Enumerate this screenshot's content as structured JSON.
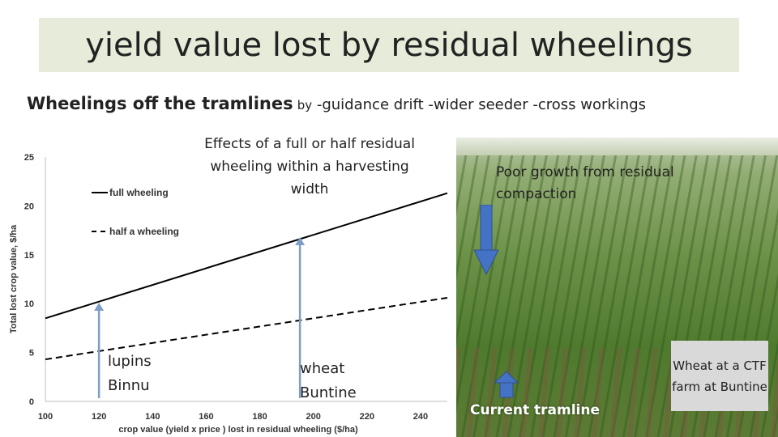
{
  "title": "yield value lost by residual wheelings",
  "subtitle": {
    "bold": "Wheelings off the tramlines",
    "by": "by",
    "rest": " -guidance drift  -wider seeder  -cross workings"
  },
  "chart_data": {
    "type": "line",
    "xlabel": "crop value (yield x price ) lost in residual wheeling ($/ha)",
    "ylabel": "Total lost crop value, $/ha",
    "xlim": [
      100,
      250
    ],
    "ylim": [
      0,
      25
    ],
    "x_ticks": [
      100,
      120,
      140,
      160,
      180,
      200,
      220,
      240
    ],
    "y_ticks": [
      0,
      5,
      10,
      15,
      20,
      25
    ],
    "series": [
      {
        "name": "full wheeling",
        "style": "solid",
        "x": [
          100,
          250
        ],
        "y": [
          8.5,
          21.3
        ]
      },
      {
        "name": "half a wheeling",
        "style": "dashed",
        "x": [
          100,
          250
        ],
        "y": [
          4.3,
          10.6
        ]
      }
    ],
    "legend": {
      "full": "full wheeling",
      "half": "half a wheeling",
      "placement": "top-left"
    },
    "annotations": [
      {
        "x": 120,
        "y_top": 10.1,
        "label_line1": "lupins",
        "label_line2": "Binnu"
      },
      {
        "x": 195,
        "y_top": 16.8,
        "label_line1": "wheat",
        "label_line2": "Buntine"
      }
    ],
    "arrow_color": "#7f9ec7"
  },
  "chart_title": "Effects of a full or half residual wheeling within a harvesting width",
  "photo": {
    "poor_growth": "Poor growth from residual compaction",
    "current_tramline": "Current tramline",
    "caption": "Wheat at a CTF farm at Buntine",
    "arrow_color": "#4472c4"
  }
}
